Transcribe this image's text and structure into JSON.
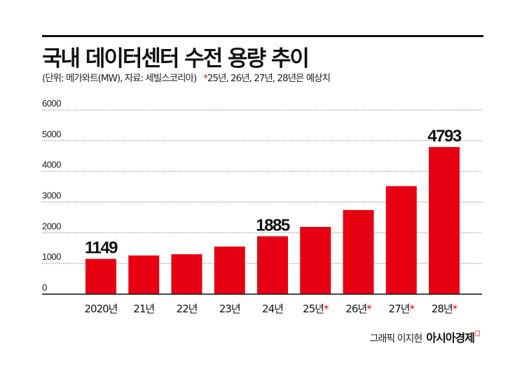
{
  "title": "국내 데이터센터 수전 용량 추이",
  "subtitle": "(단위: 메가와트(MW), 자료: 세빌스코리아)",
  "note_star": "*",
  "note": "25년, 26년, 27년, 28년은 예상치",
  "credit": "그래픽 이지현",
  "publisher": "아시아경제",
  "colors": {
    "bar": "#e60012",
    "star": "#e60012"
  },
  "chart_data": {
    "type": "bar",
    "categories": [
      "2020년",
      "21년",
      "22년",
      "23년",
      "24년",
      "25년",
      "26년",
      "27년",
      "28년"
    ],
    "forecast": [
      false,
      false,
      false,
      false,
      false,
      true,
      true,
      true,
      true
    ],
    "values": [
      1149,
      1260,
      1300,
      1550,
      1885,
      2190,
      2740,
      3520,
      4793
    ],
    "data_labels": {
      "0": "1149",
      "4": "1885",
      "8": "4793"
    },
    "yticks": [
      "0",
      "1000",
      "2000",
      "3000",
      "4000",
      "5000",
      "6000"
    ],
    "ylim": [
      0,
      6000
    ],
    "grid": true,
    "xlabel": "",
    "ylabel": ""
  }
}
